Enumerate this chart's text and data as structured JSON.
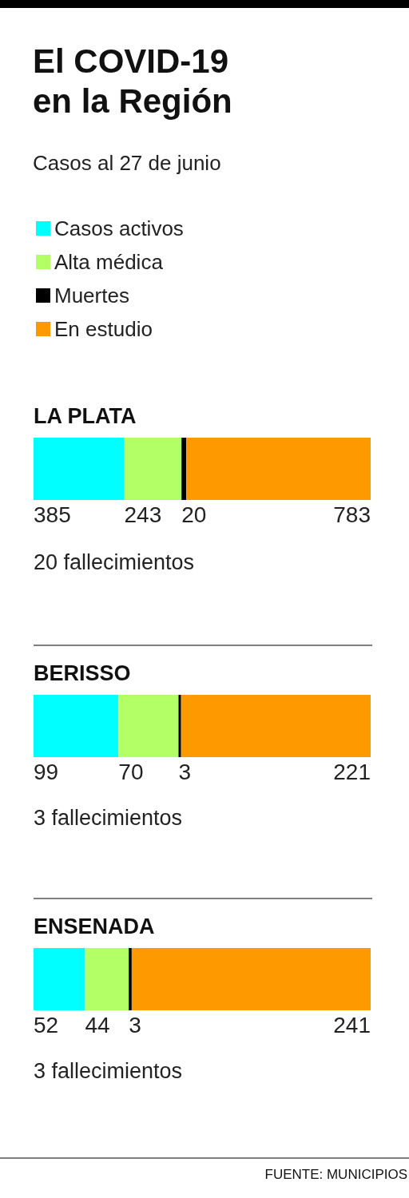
{
  "chart_data": [
    {
      "type": "bar",
      "orientation": "horizontal",
      "stacked": true,
      "title": "El COVID-19 en la Región",
      "subtitle": "Casos al 27 de junio",
      "legend": "top left",
      "categories": [
        "LA PLATA"
      ],
      "tick_labels": "y",
      "data_labels": true,
      "series": [
        {
          "name": "Casos activos",
          "color": "#00ffff",
          "values": [
            385
          ]
        },
        {
          "name": "Alta médica",
          "color": "#b3ff66",
          "values": [
            243
          ]
        },
        {
          "name": "Muertes",
          "color": "#000000",
          "values": [
            20
          ]
        },
        {
          "name": "En estudio",
          "color": "#ff9900",
          "values": [
            783
          ]
        }
      ],
      "annotations": [
        "20 fallecimientos"
      ]
    },
    {
      "type": "bar",
      "orientation": "horizontal",
      "stacked": true,
      "categories": [
        "BERISSO"
      ],
      "tick_labels": "y",
      "data_labels": true,
      "series": [
        {
          "color": "#00ffff",
          "values": [
            99
          ]
        },
        {
          "color": "#b3ff66",
          "values": [
            70
          ]
        },
        {
          "color": "#000000",
          "values": [
            3
          ]
        },
        {
          "color": "#ff9900",
          "values": [
            221
          ]
        }
      ],
      "annotations": [
        "3 fallecimientos"
      ]
    },
    {
      "type": "bar",
      "orientation": "horizontal",
      "stacked": true,
      "categories": [
        "ENSENADA"
      ],
      "tick_labels": "y",
      "data_labels": true,
      "series": [
        {
          "color": "#00ffff",
          "values": [
            52
          ]
        },
        {
          "color": "#b3ff66",
          "values": [
            44
          ]
        },
        {
          "color": "#000000",
          "values": [
            3
          ]
        },
        {
          "color": "#ff9900",
          "values": [
            241
          ]
        }
      ],
      "annotations": [
        "3 fallecimientos",
        "FUENTE: MUNICIPIOS"
      ]
    }
  ]
}
